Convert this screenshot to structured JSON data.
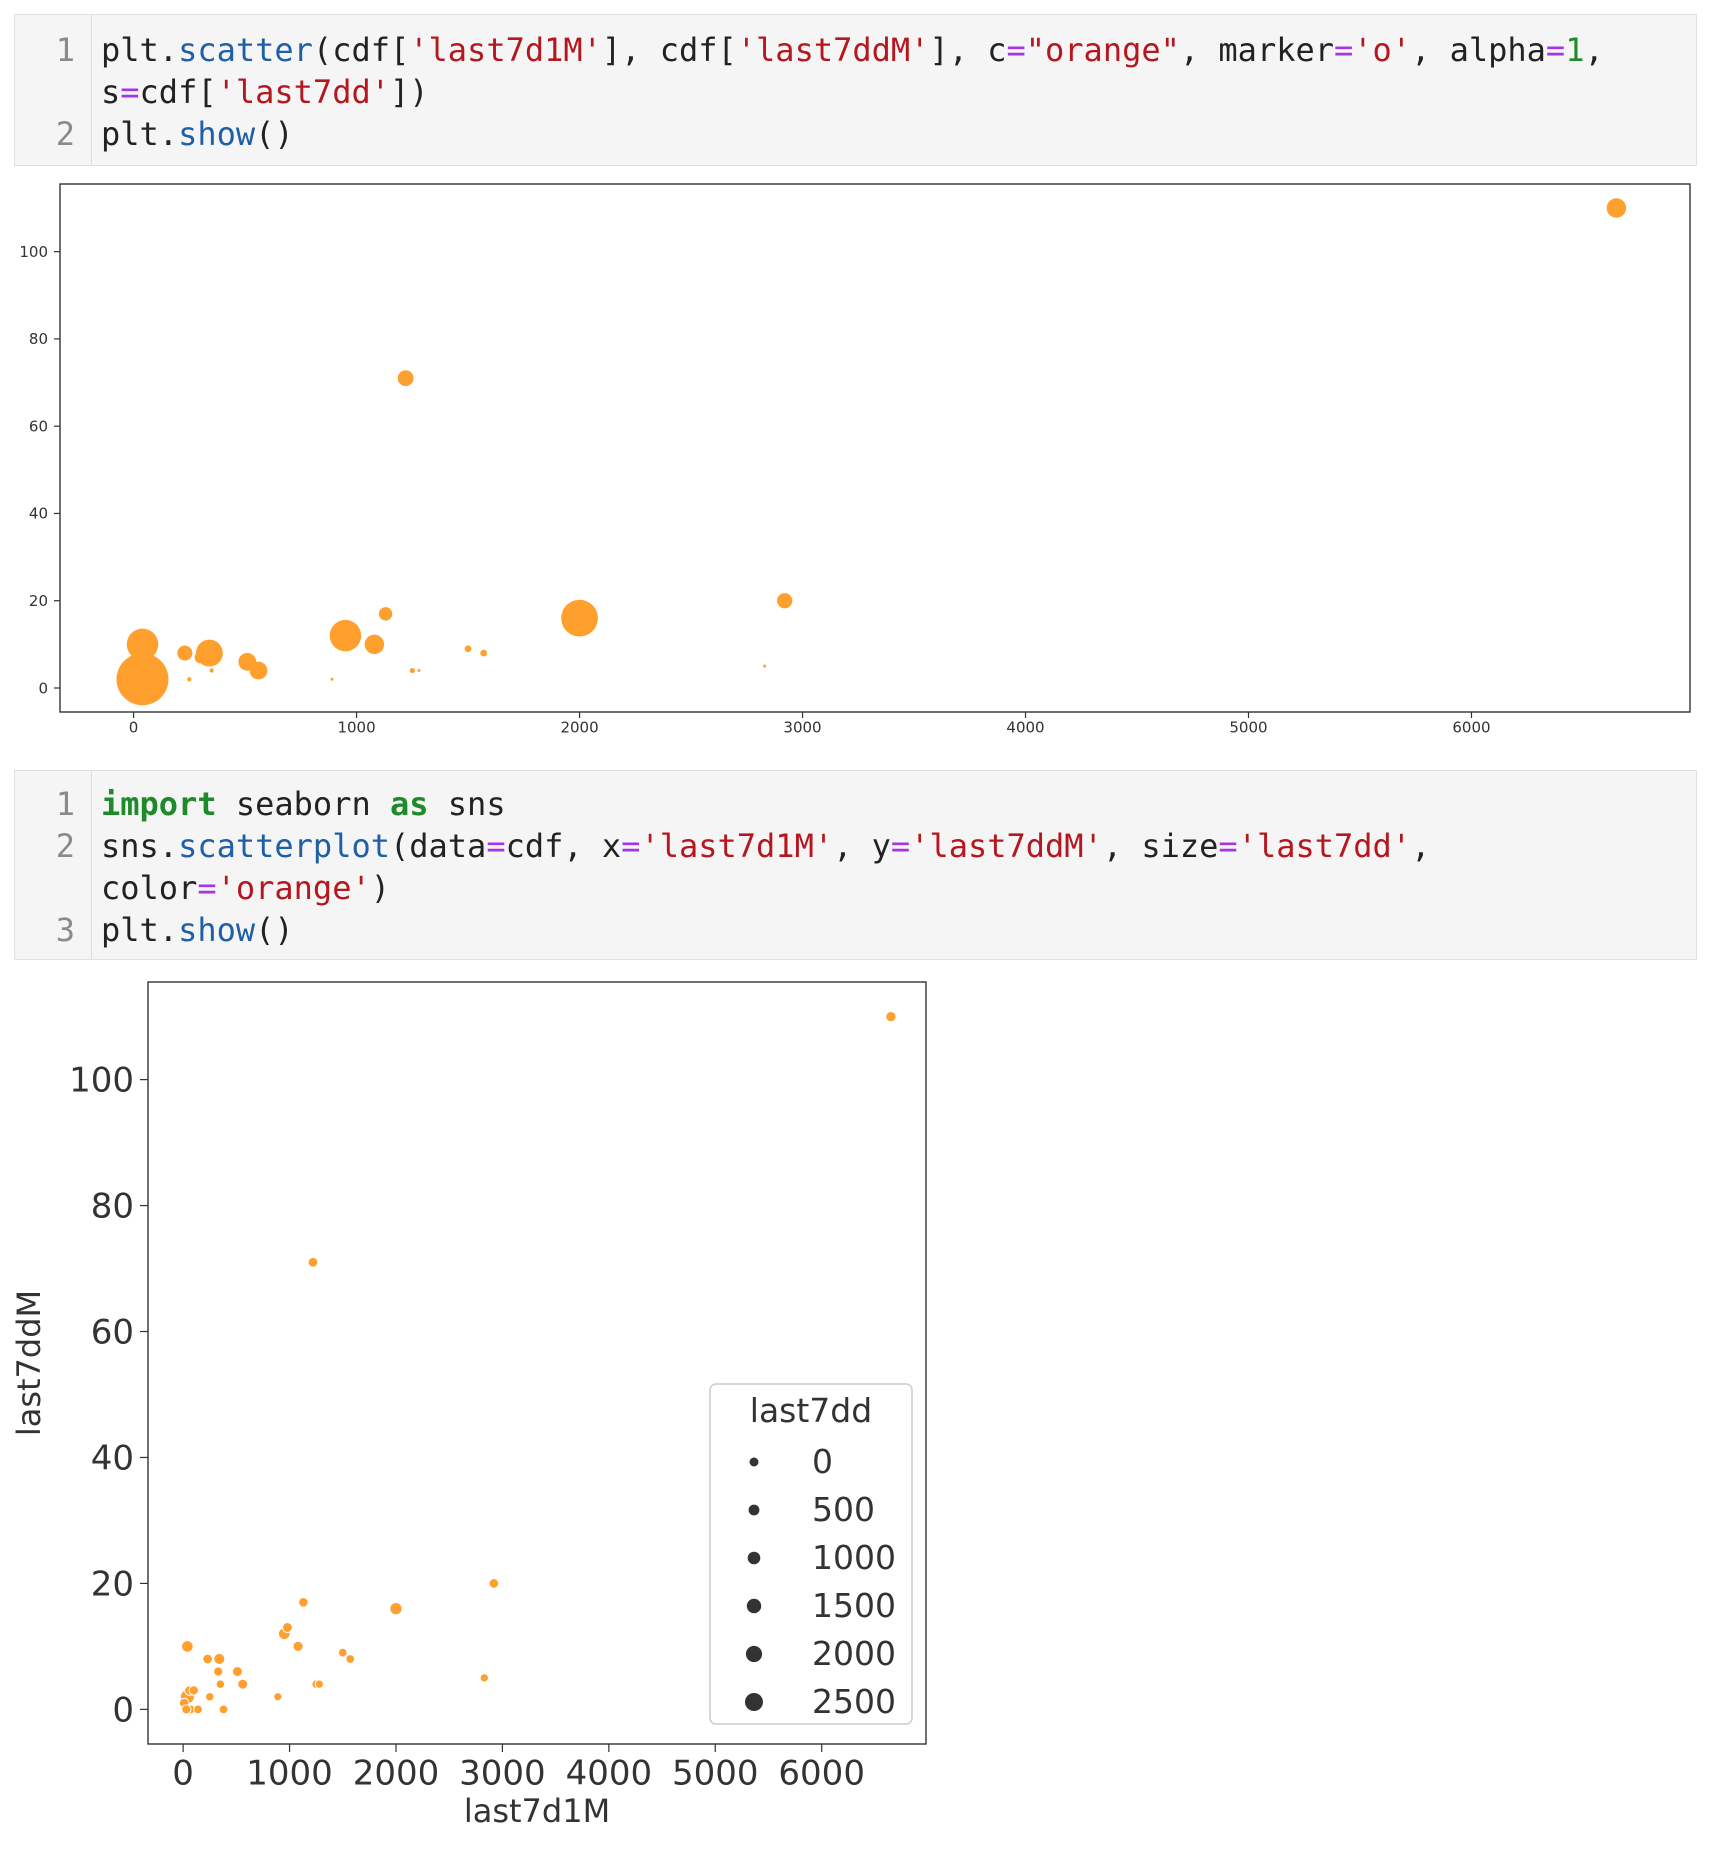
{
  "cells": [
    {
      "lines": [
        {
          "number": "1",
          "tokens": [
            {
              "text": "plt.",
              "cls": "c-var"
            },
            {
              "text": "scatter",
              "cls": "c-fn"
            },
            {
              "text": "(cdf[",
              "cls": "c-pn"
            },
            {
              "text": "'last7d1M'",
              "cls": "c-str"
            },
            {
              "text": "], cdf[",
              "cls": "c-pn"
            },
            {
              "text": "'last7ddM'",
              "cls": "c-str"
            },
            {
              "text": "], c",
              "cls": "c-pn"
            },
            {
              "text": "=",
              "cls": "c-op"
            },
            {
              "text": "\"orange\"",
              "cls": "c-str"
            },
            {
              "text": ", marker",
              "cls": "c-pn"
            },
            {
              "text": "=",
              "cls": "c-op"
            },
            {
              "text": "'o'",
              "cls": "c-str"
            },
            {
              "text": ", alpha",
              "cls": "c-pn"
            },
            {
              "text": "=",
              "cls": "c-op"
            },
            {
              "text": "1",
              "cls": "c-num"
            },
            {
              "text": ",",
              "cls": "c-pn"
            }
          ]
        },
        {
          "number": "",
          "tokens": [
            {
              "text": "s",
              "cls": "c-var"
            },
            {
              "text": "=",
              "cls": "c-op"
            },
            {
              "text": "cdf[",
              "cls": "c-pn"
            },
            {
              "text": "'last7dd'",
              "cls": "c-str"
            },
            {
              "text": "])",
              "cls": "c-pn"
            }
          ]
        },
        {
          "number": "2",
          "tokens": [
            {
              "text": "plt.",
              "cls": "c-var"
            },
            {
              "text": "show",
              "cls": "c-fn"
            },
            {
              "text": "()",
              "cls": "c-pn"
            }
          ]
        }
      ]
    },
    {
      "lines": [
        {
          "number": "1",
          "tokens": [
            {
              "text": "import",
              "cls": "c-kw"
            },
            {
              "text": " seaborn ",
              "cls": "c-var"
            },
            {
              "text": "as",
              "cls": "c-kw"
            },
            {
              "text": " sns",
              "cls": "c-var"
            }
          ]
        },
        {
          "number": "2",
          "tokens": [
            {
              "text": "sns.",
              "cls": "c-var"
            },
            {
              "text": "scatterplot",
              "cls": "c-fn"
            },
            {
              "text": "(data",
              "cls": "c-pn"
            },
            {
              "text": "=",
              "cls": "c-op"
            },
            {
              "text": "cdf, x",
              "cls": "c-pn"
            },
            {
              "text": "=",
              "cls": "c-op"
            },
            {
              "text": "'last7d1M'",
              "cls": "c-str"
            },
            {
              "text": ", y",
              "cls": "c-pn"
            },
            {
              "text": "=",
              "cls": "c-op"
            },
            {
              "text": "'last7ddM'",
              "cls": "c-str"
            },
            {
              "text": ", size",
              "cls": "c-pn"
            },
            {
              "text": "=",
              "cls": "c-op"
            },
            {
              "text": "'last7dd'",
              "cls": "c-str"
            },
            {
              "text": ",",
              "cls": "c-pn"
            }
          ]
        },
        {
          "number": "",
          "tokens": [
            {
              "text": "color",
              "cls": "c-var"
            },
            {
              "text": "=",
              "cls": "c-op"
            },
            {
              "text": "'orange'",
              "cls": "c-str"
            },
            {
              "text": ")",
              "cls": "c-pn"
            }
          ]
        },
        {
          "number": "3",
          "tokens": [
            {
              "text": "plt.",
              "cls": "c-var"
            },
            {
              "text": "show",
              "cls": "c-fn"
            },
            {
              "text": "()",
              "cls": "c-pn"
            }
          ]
        }
      ]
    }
  ],
  "colors": {
    "marker": "#ffa02e",
    "marker_edge": "#ffffff",
    "axis": "#333333",
    "tick_text": "#333333"
  },
  "chart_data": [
    {
      "type": "scatter",
      "title": "",
      "xlabel": "",
      "ylabel": "",
      "xlim": [
        -330,
        6980
      ],
      "ylim": [
        -5.5,
        115.5
      ],
      "xticks": [
        0,
        1000,
        2000,
        3000,
        4000,
        5000,
        6000
      ],
      "yticks": [
        0,
        20,
        40,
        60,
        80,
        100
      ],
      "grid": false,
      "points": [
        {
          "x": 6650,
          "y": 110,
          "s": 420
        },
        {
          "x": 1220,
          "y": 71,
          "s": 280
        },
        {
          "x": 2920,
          "y": 20,
          "s": 260
        },
        {
          "x": 1130,
          "y": 17,
          "s": 200
        },
        {
          "x": 2000,
          "y": 16,
          "s": 1500
        },
        {
          "x": 950,
          "y": 12,
          "s": 1100
        },
        {
          "x": 1080,
          "y": 10,
          "s": 420
        },
        {
          "x": 40,
          "y": 10,
          "s": 1100
        },
        {
          "x": 340,
          "y": 8,
          "s": 800
        },
        {
          "x": 230,
          "y": 8,
          "s": 250
        },
        {
          "x": 1500,
          "y": 9,
          "s": 50
        },
        {
          "x": 1570,
          "y": 8,
          "s": 50
        },
        {
          "x": 510,
          "y": 6,
          "s": 350
        },
        {
          "x": 560,
          "y": 4,
          "s": 350
        },
        {
          "x": 300,
          "y": 7,
          "s": 150
        },
        {
          "x": 350,
          "y": 4,
          "s": 20
        },
        {
          "x": 40,
          "y": 2,
          "s": 3000
        },
        {
          "x": 250,
          "y": 2,
          "s": 20
        },
        {
          "x": 1250,
          "y": 4,
          "s": 30
        },
        {
          "x": 1280,
          "y": 4,
          "s": 8
        },
        {
          "x": 2830,
          "y": 5,
          "s": 8
        },
        {
          "x": 890,
          "y": 2,
          "s": 3
        }
      ]
    },
    {
      "type": "scatter",
      "title": "",
      "xlabel": "last7d1M",
      "ylabel": "last7ddM",
      "xlim": [
        -330,
        6980
      ],
      "ylim": [
        -5.5,
        115.5
      ],
      "xticks": [
        0,
        1000,
        2000,
        3000,
        4000,
        5000,
        6000
      ],
      "yticks": [
        0,
        20,
        40,
        60,
        80,
        100
      ],
      "grid": false,
      "legend": {
        "title": "last7dd",
        "placement": "lower-right",
        "entries": [
          "0",
          "500",
          "1000",
          "1500",
          "2000",
          "2500"
        ]
      },
      "points": [
        {
          "x": 6650,
          "y": 110,
          "s": 420
        },
        {
          "x": 1220,
          "y": 71,
          "s": 280
        },
        {
          "x": 2920,
          "y": 20,
          "s": 260
        },
        {
          "x": 1130,
          "y": 17,
          "s": 200
        },
        {
          "x": 2000,
          "y": 16,
          "s": 1500
        },
        {
          "x": 950,
          "y": 12,
          "s": 1100
        },
        {
          "x": 980,
          "y": 13,
          "s": 300
        },
        {
          "x": 1080,
          "y": 10,
          "s": 420
        },
        {
          "x": 40,
          "y": 10,
          "s": 1100
        },
        {
          "x": 340,
          "y": 8,
          "s": 800
        },
        {
          "x": 230,
          "y": 8,
          "s": 250
        },
        {
          "x": 1500,
          "y": 9,
          "s": 50
        },
        {
          "x": 1570,
          "y": 8,
          "s": 50
        },
        {
          "x": 510,
          "y": 6,
          "s": 350
        },
        {
          "x": 560,
          "y": 4,
          "s": 350
        },
        {
          "x": 330,
          "y": 6,
          "s": 150
        },
        {
          "x": 350,
          "y": 4,
          "s": 20
        },
        {
          "x": 40,
          "y": 2,
          "s": 3000
        },
        {
          "x": 250,
          "y": 2,
          "s": 20
        },
        {
          "x": 1250,
          "y": 4,
          "s": 30
        },
        {
          "x": 1280,
          "y": 4,
          "s": 8
        },
        {
          "x": 2830,
          "y": 5,
          "s": 8
        },
        {
          "x": 890,
          "y": 2,
          "s": 3
        },
        {
          "x": 60,
          "y": 3,
          "s": 200
        },
        {
          "x": 100,
          "y": 3,
          "s": 150
        },
        {
          "x": 10,
          "y": 1,
          "s": 200
        },
        {
          "x": 70,
          "y": 0,
          "s": 100
        },
        {
          "x": 140,
          "y": 0,
          "s": 50
        },
        {
          "x": 380,
          "y": 0,
          "s": 50
        },
        {
          "x": 30,
          "y": 0,
          "s": 150
        }
      ]
    }
  ]
}
